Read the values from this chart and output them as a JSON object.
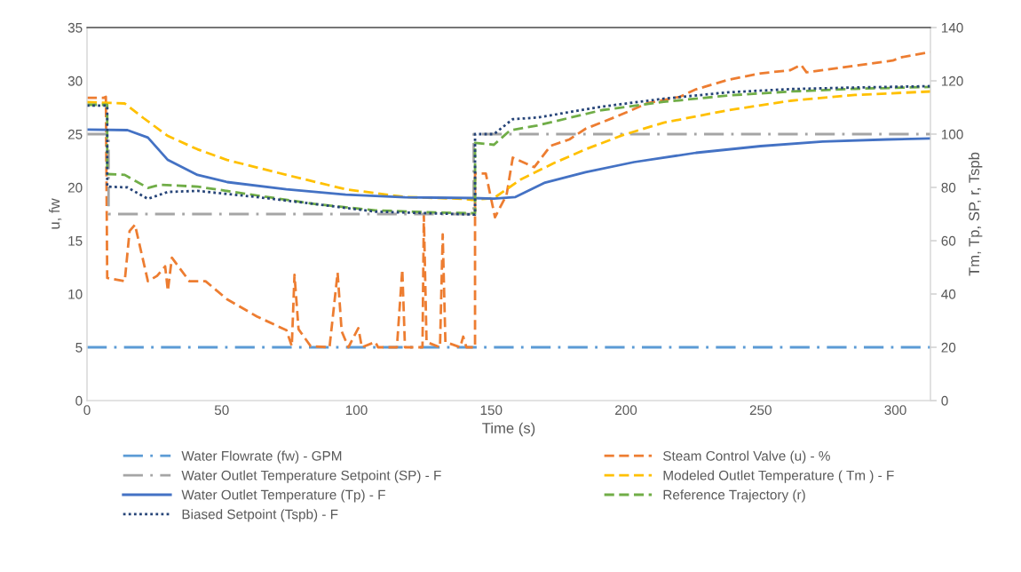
{
  "chart_data": {
    "type": "line",
    "xlabel": "Time (s)",
    "ylabel": "u, fw",
    "y2label": "Tm, Tp, SP, r, Tspb",
    "xlim": [
      0,
      313
    ],
    "xticks": [
      0,
      50,
      100,
      150,
      200,
      250,
      300
    ],
    "ylim": [
      0,
      35
    ],
    "yticks": [
      0,
      5,
      10,
      15,
      20,
      25,
      30,
      35
    ],
    "y2lim": [
      0,
      140
    ],
    "y2ticks": [
      0,
      20,
      40,
      60,
      80,
      100,
      120,
      140
    ],
    "grid": false,
    "legend": "bottom",
    "marker": "none",
    "series": [
      {
        "name": "Water Flowrate (fw) - GPM",
        "color": "#5b9bd5",
        "line_style": "dashdot",
        "x": [
          0,
          313
        ],
        "values": [
          5,
          5
        ]
      },
      {
        "name": "Steam Control Valve (u) - %",
        "color": "#ed7d31",
        "line_style": "dashed",
        "x": [
          0,
          6,
          7,
          7.5,
          14,
          15.8,
          17.8,
          22.6,
          26,
          29,
          30,
          31.5,
          38,
          44,
          52,
          63,
          74,
          76,
          77,
          78.5,
          83,
          90,
          93,
          94.5,
          97,
          100.7,
          102,
          107,
          108,
          115,
          117,
          118,
          124.5,
          125,
          126,
          131,
          132,
          133,
          138.5,
          139.6,
          140.8,
          144,
          144,
          148,
          151.4,
          155.7,
          158,
          166,
          172,
          179,
          185,
          197,
          208,
          220,
          226,
          238,
          250,
          261,
          265,
          267,
          279,
          290,
          299,
          302,
          313
        ],
        "values": [
          28.4,
          28.4,
          28.5,
          11.5,
          11.2,
          15.9,
          16.5,
          11.2,
          11.7,
          12.6,
          10.3,
          13.4,
          11.2,
          11.2,
          9.5,
          7.9,
          6.6,
          5.1,
          11.8,
          6.7,
          5.1,
          5,
          12,
          6.5,
          5,
          6.8,
          5,
          5.5,
          5,
          5,
          12.3,
          5,
          5,
          17.4,
          5.5,
          5,
          15.6,
          5.5,
          5,
          6,
          5,
          5,
          21.3,
          21.3,
          17.2,
          19.3,
          22.8,
          21.9,
          23.9,
          24.5,
          25.5,
          26.7,
          27.9,
          28.5,
          29.2,
          30.1,
          30.7,
          31,
          31.5,
          30.8,
          31.2,
          31.6,
          31.9,
          32.2,
          32.7
        ]
      },
      {
        "name": "Water Outlet Temperature Setpoint (SP) - F",
        "color": "#a5a5a5",
        "line_style": "dashdot",
        "axis": "y2",
        "x": [
          0,
          8,
          8,
          143.5,
          143.5,
          313
        ],
        "values": [
          100,
          100,
          70,
          70,
          100,
          100
        ]
      },
      {
        "name": "Modeled Outlet Temperature ( Tm ) - F",
        "color": "#ffc000",
        "line_style": "dashed",
        "axis": "y2",
        "x": [
          0,
          14,
          21,
          30,
          41,
          52,
          74,
          96,
          118,
          140,
          143,
          151,
          161,
          173,
          185,
          199,
          214,
          238,
          261,
          285,
          313
        ],
        "values": [
          112,
          111.5,
          106,
          99.3,
          94.3,
          90.3,
          84.7,
          79.3,
          76.4,
          75.7,
          75.3,
          76,
          83,
          89,
          94.3,
          99.7,
          104.3,
          109,
          112.5,
          114.7,
          116
        ]
      },
      {
        "name": "Water Outlet Temperature (Tp) - F",
        "color": "#4472c4",
        "line_style": "solid",
        "axis": "y2",
        "x": [
          0,
          15,
          22.6,
          30,
          41,
          52,
          74,
          96,
          118,
          143,
          151,
          159,
          170,
          185,
          203,
          226,
          250,
          273,
          297,
          313
        ],
        "values": [
          101.7,
          101.5,
          98.7,
          90.3,
          84.7,
          82,
          79.3,
          77.3,
          76.3,
          76,
          75.8,
          76.4,
          81.8,
          85.7,
          89.5,
          93,
          95.5,
          97.2,
          98,
          98.4
        ]
      },
      {
        "name": "Reference Trajectory (r)",
        "color": "#70ad47",
        "line_style": "dashed",
        "axis": "y2",
        "x": [
          0,
          7.5,
          7.5,
          14,
          22.6,
          27,
          41,
          63,
          85,
          107,
          129,
          144,
          144,
          151,
          157,
          167,
          191,
          214,
          238,
          261,
          285,
          313
        ],
        "values": [
          111,
          111,
          85,
          84.7,
          79.8,
          81,
          80.3,
          77,
          73.7,
          71.4,
          70.6,
          70.3,
          96.7,
          96,
          101.4,
          103.2,
          109,
          112.1,
          114.5,
          116,
          117,
          117.7
        ]
      },
      {
        "name": "Biased Setpoint (Tspb) - F",
        "color": "#264478",
        "line_style": "dotted",
        "axis": "y2",
        "x": [
          0,
          7.5,
          7.5,
          15,
          22.6,
          30,
          41,
          63,
          85,
          107,
          144,
          144,
          151,
          158,
          167,
          191,
          214,
          238,
          261,
          285,
          313
        ],
        "values": [
          110.7,
          110.7,
          80.3,
          80,
          75.7,
          78.3,
          78.7,
          76.4,
          73.7,
          70.9,
          69.8,
          100,
          100,
          105.6,
          106.2,
          110.3,
          113.3,
          115.7,
          116.9,
          117.5,
          118
        ]
      }
    ]
  }
}
